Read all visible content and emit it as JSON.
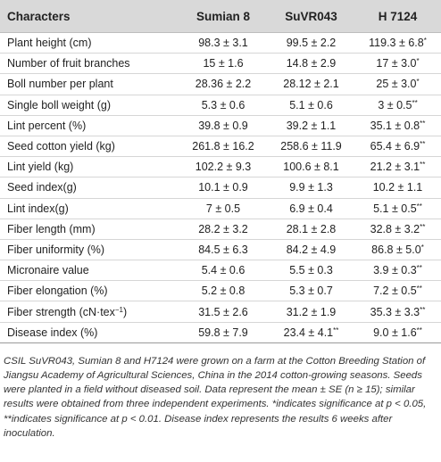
{
  "table": {
    "headers": [
      "Characters",
      "Sumian 8",
      "SuVR043",
      "H 7124"
    ],
    "rows": [
      {
        "label": "Plant height (cm)",
        "cells": [
          {
            "v": "98.3 ± 3.1",
            "s": ""
          },
          {
            "v": "99.5 ± 2.2",
            "s": ""
          },
          {
            "v": "119.3 ± 6.8",
            "s": "*"
          }
        ]
      },
      {
        "label": "Number of fruit branches",
        "cells": [
          {
            "v": "15 ± 1.6",
            "s": ""
          },
          {
            "v": "14.8 ± 2.9",
            "s": ""
          },
          {
            "v": "17 ± 3.0",
            "s": "*"
          }
        ]
      },
      {
        "label": "Boll number per plant",
        "cells": [
          {
            "v": "28.36 ± 2.2",
            "s": ""
          },
          {
            "v": "28.12 ± 2.1",
            "s": ""
          },
          {
            "v": "25 ± 3.0",
            "s": "*"
          }
        ]
      },
      {
        "label": "Single boll weight (g)",
        "cells": [
          {
            "v": "5.3 ± 0.6",
            "s": ""
          },
          {
            "v": "5.1 ± 0.6",
            "s": ""
          },
          {
            "v": "3 ± 0.5",
            "s": "**"
          }
        ]
      },
      {
        "label": "Lint percent (%)",
        "cells": [
          {
            "v": "39.8 ± 0.9",
            "s": ""
          },
          {
            "v": "39.2 ± 1.1",
            "s": ""
          },
          {
            "v": "35.1 ± 0.8",
            "s": "**"
          }
        ]
      },
      {
        "label": "Seed cotton yield (kg)",
        "cells": [
          {
            "v": "261.8 ± 16.2",
            "s": ""
          },
          {
            "v": "258.6 ± 11.9",
            "s": ""
          },
          {
            "v": "65.4 ± 6.9",
            "s": "**"
          }
        ]
      },
      {
        "label": "Lint yield (kg)",
        "cells": [
          {
            "v": "102.2 ± 9.3",
            "s": ""
          },
          {
            "v": "100.6 ± 8.1",
            "s": ""
          },
          {
            "v": "21.2 ± 3.1",
            "s": "**"
          }
        ]
      },
      {
        "label": "Seed index(g)",
        "cells": [
          {
            "v": "10.1 ± 0.9",
            "s": ""
          },
          {
            "v": "9.9 ± 1.3",
            "s": ""
          },
          {
            "v": "10.2 ± 1.1",
            "s": ""
          }
        ]
      },
      {
        "label": "Lint index(g)",
        "cells": [
          {
            "v": "7 ± 0.5",
            "s": ""
          },
          {
            "v": "6.9 ± 0.4",
            "s": ""
          },
          {
            "v": "5.1 ± 0.5",
            "s": "**"
          }
        ]
      },
      {
        "label": "Fiber length (mm)",
        "cells": [
          {
            "v": "28.2 ± 3.2",
            "s": ""
          },
          {
            "v": "28.1 ± 2.8",
            "s": ""
          },
          {
            "v": "32.8 ± 3.2",
            "s": "**"
          }
        ]
      },
      {
        "label": "Fiber uniformity (%)",
        "cells": [
          {
            "v": "84.5 ± 6.3",
            "s": ""
          },
          {
            "v": "84.2 ± 4.9",
            "s": ""
          },
          {
            "v": "86.8 ± 5.0",
            "s": "*"
          }
        ]
      },
      {
        "label": "Micronaire value",
        "cells": [
          {
            "v": "5.4 ± 0.6",
            "s": ""
          },
          {
            "v": "5.5 ± 0.3",
            "s": ""
          },
          {
            "v": "3.9 ± 0.3",
            "s": "**"
          }
        ]
      },
      {
        "label": "Fiber elongation (%)",
        "cells": [
          {
            "v": "5.2 ± 0.8",
            "s": ""
          },
          {
            "v": "5.3 ± 0.7",
            "s": ""
          },
          {
            "v": "7.2 ± 0.5",
            "s": "**"
          }
        ]
      },
      {
        "label": "Fiber strength (cN·tex",
        "label_sup": "−1",
        "label_tail": ")",
        "cells": [
          {
            "v": "31.5 ± 2.6",
            "s": ""
          },
          {
            "v": "31.2 ± 1.9",
            "s": ""
          },
          {
            "v": "35.3 ± 3.3",
            "s": "**"
          }
        ]
      },
      {
        "label": "Disease index (%)",
        "cells": [
          {
            "v": "59.8 ± 7.9",
            "s": ""
          },
          {
            "v": "23.4 ± 4.1",
            "s": "**"
          },
          {
            "v": "9.0 ± 1.6",
            "s": "**"
          }
        ]
      }
    ]
  },
  "footnote": "CSIL SuVR043, Sumian 8 and H7124 were grown on a farm at the Cotton Breeding Station of Jiangsu Academy of Agricultural Sciences, China in the 2014 cotton-growing seasons. Seeds were planted in a field without diseased soil. Data represent the mean ± SE (n ≥ 15); similar results were obtained from three independent experiments. *indicates significance at p < 0.05, **indicates significance at p < 0.01. Disease index represents the results 6 weeks after inoculation."
}
